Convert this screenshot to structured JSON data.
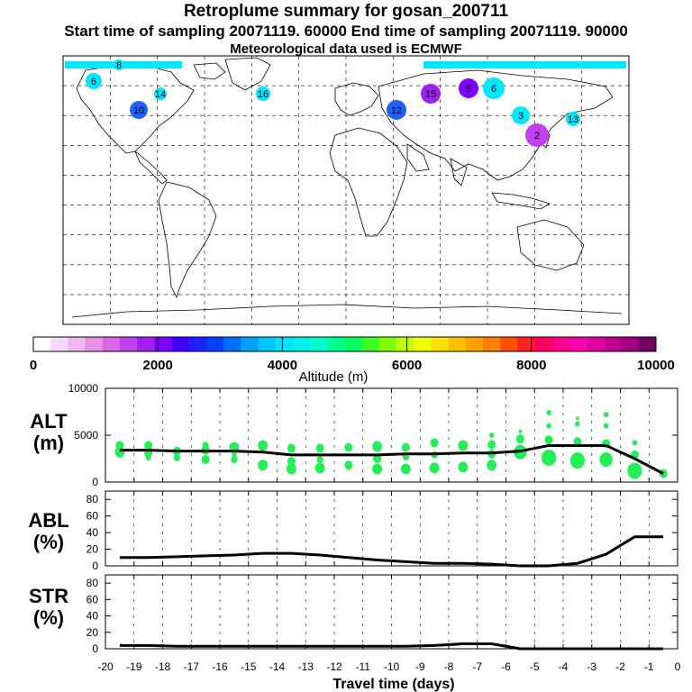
{
  "titles": {
    "line1": "Retroplume summary for gosan_200711",
    "line2": "Start time of sampling 20071119. 60000     End time of sampling 20071119. 90000",
    "line3": "Meteorological data used is ECMWF"
  },
  "colorbar": {
    "label": "Altitude (m)",
    "ticks": [
      "0",
      "2000",
      "4000",
      "6000",
      "8000",
      "10000"
    ],
    "colors": [
      "#ffffff",
      "#f8d8f8",
      "#f0b8f0",
      "#e890e8",
      "#d868e8",
      "#c040f0",
      "#a020f0",
      "#8000ff",
      "#4000ff",
      "#2020ff",
      "#0040ff",
      "#0070ff",
      "#00a0ff",
      "#00c8ff",
      "#00e0ff",
      "#00f0f0",
      "#00ffd0",
      "#00ff90",
      "#00ff60",
      "#40ff20",
      "#80ff00",
      "#c0ff00",
      "#f0ff00",
      "#ffe000",
      "#ffc000",
      "#ffa000",
      "#ff8000",
      "#ff5000",
      "#ff2020",
      "#ff0060",
      "#ff0090",
      "#ff00b0",
      "#e000a0",
      "#c00090",
      "#a00080",
      "#700060"
    ]
  },
  "map_markers": [
    {
      "label": "6",
      "color": "#00e8ff"
    },
    {
      "label": "8",
      "color": "#00e8ff"
    },
    {
      "label": "10",
      "color": "#2060ff"
    },
    {
      "label": "14",
      "color": "#00e8ff"
    },
    {
      "label": "15",
      "color": "#a020f0"
    },
    {
      "label": "5",
      "color": "#8000ff"
    },
    {
      "label": "6",
      "color": "#00e8ff"
    },
    {
      "label": "3",
      "color": "#00e8ff"
    },
    {
      "label": "2",
      "color": "#c040f0"
    },
    {
      "label": "16",
      "color": "#00e8ff"
    },
    {
      "label": "12",
      "color": "#2060ff"
    },
    {
      "label": "13",
      "color": "#00e8ff"
    }
  ],
  "panels": {
    "alt": {
      "label_line1": "ALT",
      "label_line2": "(m)"
    },
    "abl": {
      "label_line1": "ABL",
      "label_line2": "(%)"
    },
    "str": {
      "label_line1": "STR",
      "label_line2": "(%)"
    }
  },
  "chart_data": [
    {
      "type": "line",
      "title": "ALT",
      "xlabel": "Travel time (days)",
      "ylabel": "ALT (m)",
      "xlim": [
        -20,
        0
      ],
      "ylim": [
        0,
        10000
      ],
      "y_ticks": [
        "0",
        "5000",
        "10000"
      ],
      "x": [
        -19.5,
        -18.5,
        -17.5,
        -16.5,
        -15.5,
        -14.5,
        -13.5,
        -12.5,
        -11.5,
        -10.5,
        -9.5,
        -8.5,
        -7.5,
        -6.5,
        -5.5,
        -4.5,
        -3.5,
        -2.5,
        -1.5,
        -0.5
      ],
      "values": [
        3400,
        3400,
        3300,
        3300,
        3300,
        3200,
        2900,
        2900,
        2900,
        2900,
        3000,
        3000,
        3100,
        3100,
        3300,
        3900,
        3900,
        3900,
        2500,
        900
      ],
      "scatter": [
        [
          -19.5,
          3200,
          6
        ],
        [
          -19.5,
          3900,
          5
        ],
        [
          -19.5,
          3600,
          4
        ],
        [
          -18.5,
          3100,
          5
        ],
        [
          -18.5,
          3900,
          5
        ],
        [
          -18.5,
          2600,
          3
        ],
        [
          -17.5,
          3300,
          5
        ],
        [
          -17.5,
          2600,
          4
        ],
        [
          -16.5,
          3400,
          5
        ],
        [
          -16.5,
          2400,
          5
        ],
        [
          -16.5,
          3900,
          4
        ],
        [
          -15.5,
          3700,
          6
        ],
        [
          -15.5,
          2400,
          4
        ],
        [
          -15.5,
          3000,
          3
        ],
        [
          -14.5,
          3900,
          6
        ],
        [
          -14.5,
          1800,
          6
        ],
        [
          -13.5,
          3600,
          5
        ],
        [
          -13.5,
          2200,
          5
        ],
        [
          -13.5,
          1400,
          6
        ],
        [
          -12.5,
          3600,
          5
        ],
        [
          -12.5,
          2400,
          4
        ],
        [
          -12.5,
          1500,
          6
        ],
        [
          -11.5,
          3700,
          5
        ],
        [
          -11.5,
          1800,
          5
        ],
        [
          -10.5,
          3800,
          6
        ],
        [
          -10.5,
          2500,
          5
        ],
        [
          -10.5,
          1400,
          6
        ],
        [
          -9.5,
          3700,
          5
        ],
        [
          -9.5,
          2700,
          4
        ],
        [
          -9.5,
          1400,
          6
        ],
        [
          -8.5,
          4200,
          5
        ],
        [
          -8.5,
          2900,
          4
        ],
        [
          -8.5,
          1500,
          6
        ],
        [
          -7.5,
          3900,
          6
        ],
        [
          -7.5,
          1600,
          6
        ],
        [
          -6.5,
          4000,
          5
        ],
        [
          -6.5,
          3000,
          5
        ],
        [
          -6.5,
          1800,
          6
        ],
        [
          -6.5,
          5000,
          3
        ],
        [
          -5.5,
          3200,
          8
        ],
        [
          -5.5,
          4600,
          5
        ],
        [
          -5.5,
          5400,
          2
        ],
        [
          -4.5,
          2600,
          9
        ],
        [
          -4.5,
          4500,
          5
        ],
        [
          -4.5,
          6000,
          3
        ],
        [
          -4.5,
          7400,
          3
        ],
        [
          -3.5,
          2300,
          9
        ],
        [
          -3.5,
          4300,
          5
        ],
        [
          -3.5,
          6200,
          3
        ],
        [
          -3.5,
          6800,
          2
        ],
        [
          -2.5,
          2400,
          8
        ],
        [
          -2.5,
          4100,
          5
        ],
        [
          -2.5,
          6000,
          3
        ],
        [
          -2.5,
          7200,
          3
        ],
        [
          -1.5,
          1200,
          9
        ],
        [
          -1.5,
          2900,
          5
        ],
        [
          -1.5,
          4200,
          3
        ],
        [
          -0.5,
          900,
          5
        ]
      ]
    },
    {
      "type": "line",
      "title": "ABL",
      "xlabel": "Travel time (days)",
      "ylabel": "ABL (%)",
      "xlim": [
        -20,
        0
      ],
      "ylim": [
        0,
        90
      ],
      "y_ticks": [
        "0",
        "20",
        "40",
        "60",
        "80"
      ],
      "x": [
        -19.5,
        -18.5,
        -17.5,
        -16.5,
        -15.5,
        -14.5,
        -13.5,
        -12.5,
        -11.5,
        -10.5,
        -9.5,
        -8.5,
        -7.5,
        -6.5,
        -5.5,
        -4.5,
        -3.5,
        -2.5,
        -1.5,
        -0.5
      ],
      "values": [
        10,
        10,
        11,
        12,
        13,
        15,
        15,
        13,
        10,
        7,
        5,
        3,
        3,
        2,
        0,
        0,
        3,
        14,
        35,
        35
      ]
    },
    {
      "type": "line",
      "title": "STR",
      "xlabel": "Travel time (days)",
      "ylabel": "STR (%)",
      "xlim": [
        -20,
        0
      ],
      "ylim": [
        0,
        90
      ],
      "y_ticks": [
        "0",
        "20",
        "40",
        "60",
        "80"
      ],
      "x_ticks": [
        "-20",
        "-19",
        "-18",
        "-17",
        "-16",
        "-15",
        "-14",
        "-13",
        "-12",
        "-11",
        "-10",
        "-9",
        "-8",
        "-7",
        "-6",
        "-5",
        "-4",
        "-3",
        "-2",
        "-1",
        "0"
      ],
      "x": [
        -19.5,
        -18.5,
        -17.5,
        -16.5,
        -15.5,
        -14.5,
        -13.5,
        -12.5,
        -11.5,
        -10.5,
        -9.5,
        -8.5,
        -7.5,
        -6.5,
        -5.5,
        -4.5,
        -3.5,
        -2.5,
        -1.5,
        -0.5
      ],
      "values": [
        4,
        4,
        3,
        3,
        3,
        3,
        3,
        3,
        3,
        3,
        3,
        4,
        6,
        6,
        0,
        0,
        0,
        0,
        0,
        0
      ]
    }
  ]
}
